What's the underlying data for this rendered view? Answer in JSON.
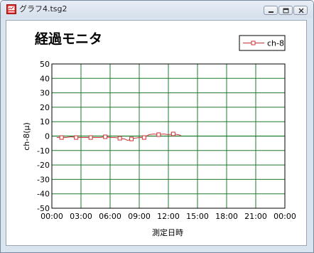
{
  "window": {
    "title": "グラフ4.tsg2",
    "icon": "app-chart-icon",
    "controls": [
      "minimize-icon",
      "maximize-icon",
      "close-icon"
    ]
  },
  "chart_data": {
    "type": "line",
    "title": "経過モニタ",
    "xlabel": "測定日時",
    "ylabel": "ch-8(μ)",
    "xlim": [
      0,
      24
    ],
    "ylim": [
      -50,
      50
    ],
    "x_ticks": [
      "00:00",
      "03:00",
      "06:00",
      "09:00",
      "12:00",
      "15:00",
      "18:00",
      "21:00",
      "00:00"
    ],
    "y_ticks": [
      "50",
      "40",
      "30",
      "20",
      "10",
      "0",
      "-10",
      "-20",
      "-30",
      "-40",
      "-50"
    ],
    "grid": true,
    "legend": {
      "position": "top-right",
      "entries": [
        "ch-8"
      ]
    },
    "colors": {
      "series": "#c83232",
      "grid": "#1e7a2e",
      "axis": "#000000"
    },
    "series": [
      {
        "name": "ch-8",
        "marker": "square",
        "marker_every": 3,
        "x": [
          0.5,
          1.0,
          1.5,
          2.0,
          2.5,
          3.0,
          3.5,
          4.0,
          4.5,
          5.0,
          5.5,
          6.0,
          6.5,
          7.0,
          7.5,
          7.8,
          8.2,
          8.5,
          9.0,
          9.5,
          10.0,
          10.5,
          11.0,
          11.5,
          12.0,
          12.5,
          13.0,
          13.3
        ],
        "y": [
          -1,
          -1,
          -1,
          -0.5,
          -1,
          -1,
          -1,
          -1,
          -1,
          -1,
          -0.5,
          -1,
          -1,
          -1.5,
          -2,
          -3,
          -2,
          -1.5,
          -1,
          -1,
          1,
          1.5,
          1,
          1.5,
          1,
          1.5,
          1,
          0.5
        ]
      }
    ]
  }
}
